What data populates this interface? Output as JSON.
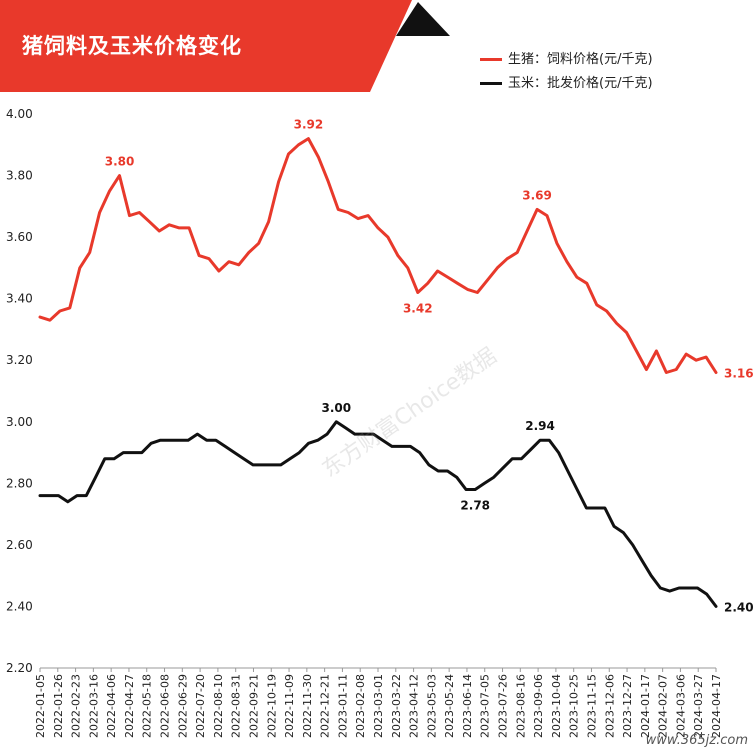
{
  "header": {
    "title": "猪饲料及玉米价格变化",
    "banner_color": "#e8392b",
    "corner_color": "#111111"
  },
  "legend": {
    "hog": "生猪：饲料价格(元/千克)",
    "corn": "玉米：批发价格(元/千克)"
  },
  "watermark": "东方财富Choice数据",
  "footer": "www.365jz.com",
  "chart_data": {
    "type": "line",
    "ylim": [
      2.2,
      4.0
    ],
    "yticks": [
      "2.20",
      "2.40",
      "2.60",
      "2.80",
      "3.00",
      "3.20",
      "3.40",
      "3.60",
      "3.80",
      "4.00"
    ],
    "x_labels": [
      "2022-01-05",
      "2022-01-26",
      "2022-02-23",
      "2022-03-16",
      "2022-04-06",
      "2022-04-27",
      "2022-05-18",
      "2022-06-08",
      "2022-06-29",
      "2022-07-20",
      "2022-08-10",
      "2022-08-31",
      "2022-09-21",
      "2022-10-19",
      "2022-11-09",
      "2022-11-30",
      "2022-12-21",
      "2023-01-11",
      "2023-02-08",
      "2023-03-01",
      "2023-03-22",
      "2023-04-12",
      "2023-05-03",
      "2023-05-24",
      "2023-06-14",
      "2023-07-05",
      "2023-07-26",
      "2023-08-16",
      "2023-09-06",
      "2023-10-04",
      "2023-10-25",
      "2023-11-15",
      "2023-12-06",
      "2023-12-27",
      "2024-01-17",
      "2024-02-07",
      "2024-03-06",
      "2024-03-27",
      "2024-04-17"
    ],
    "grid": false,
    "legend_position": "top-right",
    "series": [
      {
        "name": "生猪：饲料价格(元/千克)",
        "color": "#e8392b",
        "values": [
          3.34,
          3.33,
          3.36,
          3.37,
          3.5,
          3.55,
          3.68,
          3.75,
          3.8,
          3.67,
          3.68,
          3.65,
          3.62,
          3.64,
          3.63,
          3.63,
          3.54,
          3.53,
          3.49,
          3.52,
          3.51,
          3.55,
          3.58,
          3.65,
          3.78,
          3.87,
          3.9,
          3.92,
          3.86,
          3.78,
          3.69,
          3.68,
          3.66,
          3.67,
          3.63,
          3.6,
          3.54,
          3.5,
          3.42,
          3.45,
          3.49,
          3.47,
          3.45,
          3.43,
          3.42,
          3.46,
          3.5,
          3.53,
          3.55,
          3.62,
          3.69,
          3.67,
          3.58,
          3.52,
          3.47,
          3.45,
          3.38,
          3.36,
          3.32,
          3.29,
          3.23,
          3.17,
          3.23,
          3.16,
          3.17,
          3.22,
          3.2,
          3.21,
          3.16
        ],
        "annotations": [
          {
            "index": 8,
            "label": "3.80",
            "pos": "above"
          },
          {
            "index": 27,
            "label": "3.92",
            "pos": "above"
          },
          {
            "index": 38,
            "label": "3.42",
            "pos": "below"
          },
          {
            "index": 50,
            "label": "3.69",
            "pos": "above"
          },
          {
            "index": 68,
            "label": "3.16",
            "pos": "right"
          }
        ]
      },
      {
        "name": "玉米：批发价格(元/千克)",
        "color": "#111111",
        "values": [
          2.76,
          2.76,
          2.76,
          2.74,
          2.76,
          2.76,
          2.82,
          2.88,
          2.88,
          2.9,
          2.9,
          2.9,
          2.93,
          2.94,
          2.94,
          2.94,
          2.94,
          2.96,
          2.94,
          2.94,
          2.92,
          2.9,
          2.88,
          2.86,
          2.86,
          2.86,
          2.86,
          2.88,
          2.9,
          2.93,
          2.94,
          2.96,
          3.0,
          2.98,
          2.96,
          2.96,
          2.96,
          2.94,
          2.92,
          2.92,
          2.92,
          2.9,
          2.86,
          2.84,
          2.84,
          2.82,
          2.78,
          2.78,
          2.8,
          2.82,
          2.85,
          2.88,
          2.88,
          2.91,
          2.94,
          2.94,
          2.9,
          2.84,
          2.78,
          2.72,
          2.72,
          2.72,
          2.66,
          2.64,
          2.6,
          2.55,
          2.5,
          2.46,
          2.45,
          2.46,
          2.46,
          2.46,
          2.44,
          2.4
        ],
        "annotations": [
          {
            "index": 32,
            "label": "3.00",
            "pos": "above"
          },
          {
            "index": 47,
            "label": "2.78",
            "pos": "below"
          },
          {
            "index": 54,
            "label": "2.94",
            "pos": "above"
          },
          {
            "index": 73,
            "label": "2.40",
            "pos": "right"
          }
        ]
      }
    ]
  }
}
